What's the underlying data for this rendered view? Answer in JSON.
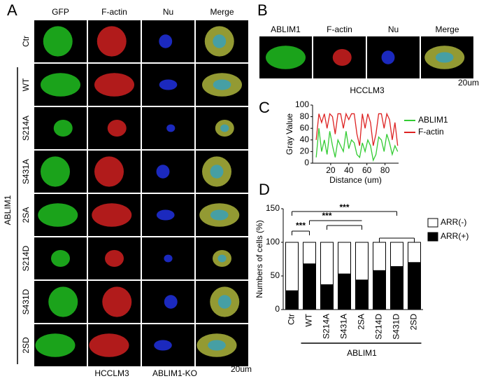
{
  "panel_a": {
    "letter": "A",
    "columns": [
      "GFP",
      "F-actin",
      "Nu",
      "Merge"
    ],
    "rows": [
      "Ctr",
      "WT",
      "S214A",
      "S431A",
      "2SA",
      "S214D",
      "S431D",
      "2SD"
    ],
    "group": "ABLIM1",
    "cell_line": "HCCLM3",
    "condition": "ABLIM1-KO",
    "scale": "20um"
  },
  "panel_b": {
    "letter": "B",
    "columns": [
      "ABLIM1",
      "F-actin",
      "Nu",
      "Merge"
    ],
    "cell_line": "HCCLM3",
    "scale": "20um"
  },
  "chart_data": [
    {
      "type": "line",
      "letter": "C",
      "x_label": "Distance (um)",
      "y_label": "Gray Value",
      "x": [
        4,
        7,
        10,
        13,
        16,
        19,
        22,
        25,
        28,
        31,
        34,
        37,
        40,
        43,
        46,
        49,
        52,
        55,
        58,
        61,
        64,
        67,
        70,
        73,
        76,
        79,
        82,
        85,
        88,
        91,
        94
      ],
      "series": [
        {
          "name": "ABLIM1",
          "color": "#33cc33",
          "values": [
            10,
            60,
            20,
            40,
            15,
            55,
            30,
            10,
            40,
            30,
            20,
            55,
            25,
            40,
            35,
            15,
            10,
            35,
            20,
            40,
            30,
            5,
            15,
            45,
            40,
            20,
            50,
            35,
            15,
            30,
            20
          ]
        },
        {
          "name": "F-actin",
          "color": "#dd2222",
          "values": [
            40,
            85,
            70,
            85,
            60,
            85,
            80,
            50,
            85,
            85,
            60,
            85,
            75,
            85,
            85,
            50,
            30,
            85,
            60,
            85,
            70,
            30,
            50,
            85,
            85,
            60,
            85,
            75,
            40,
            70,
            30
          ]
        }
      ],
      "xlim": [
        0,
        95
      ],
      "xticks": [
        20,
        40,
        60,
        80
      ],
      "ylim": [
        0,
        100
      ],
      "yticks": [
        0,
        20,
        40,
        60,
        80,
        100
      ]
    },
    {
      "type": "stacked-bar",
      "letter": "D",
      "y_label": "Numbers of cells (%)",
      "group": "ABLIM1",
      "categories": [
        "Ctr",
        "WT",
        "S214A",
        "S431A",
        "2SA",
        "S214D",
        "S431D",
        "2SD"
      ],
      "series": [
        {
          "name": "ARR(-)",
          "color": "#ffffff",
          "values": [
            72,
            32,
            63,
            47,
            56,
            42,
            36,
            30
          ]
        },
        {
          "name": "ARR(+)",
          "color": "#000000",
          "values": [
            28,
            68,
            37,
            53,
            44,
            58,
            64,
            70
          ]
        }
      ],
      "ylim": [
        0,
        150
      ],
      "yticks": [
        0,
        50,
        100,
        150
      ],
      "annotations": [
        "***",
        "***",
        "***"
      ]
    }
  ]
}
